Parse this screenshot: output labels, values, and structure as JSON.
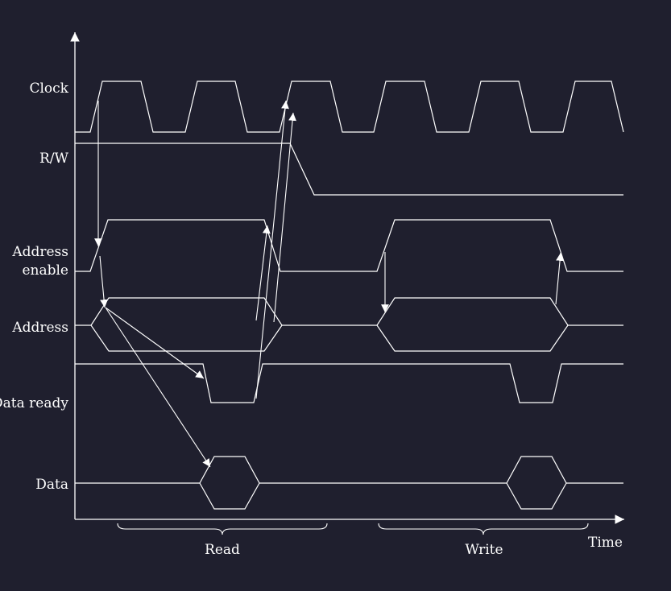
{
  "signals": {
    "clock": "Clock",
    "rw": "R/W",
    "address_enable_1": "Address",
    "address_enable_2": "enable",
    "address": "Address",
    "data_ready": "Data ready",
    "data": "Data"
  },
  "axis": {
    "x_label": "Time"
  },
  "phases": {
    "read": "Read",
    "write": "Write"
  },
  "colors": {
    "background": "#1f1f2e",
    "line": "#ffffff"
  }
}
